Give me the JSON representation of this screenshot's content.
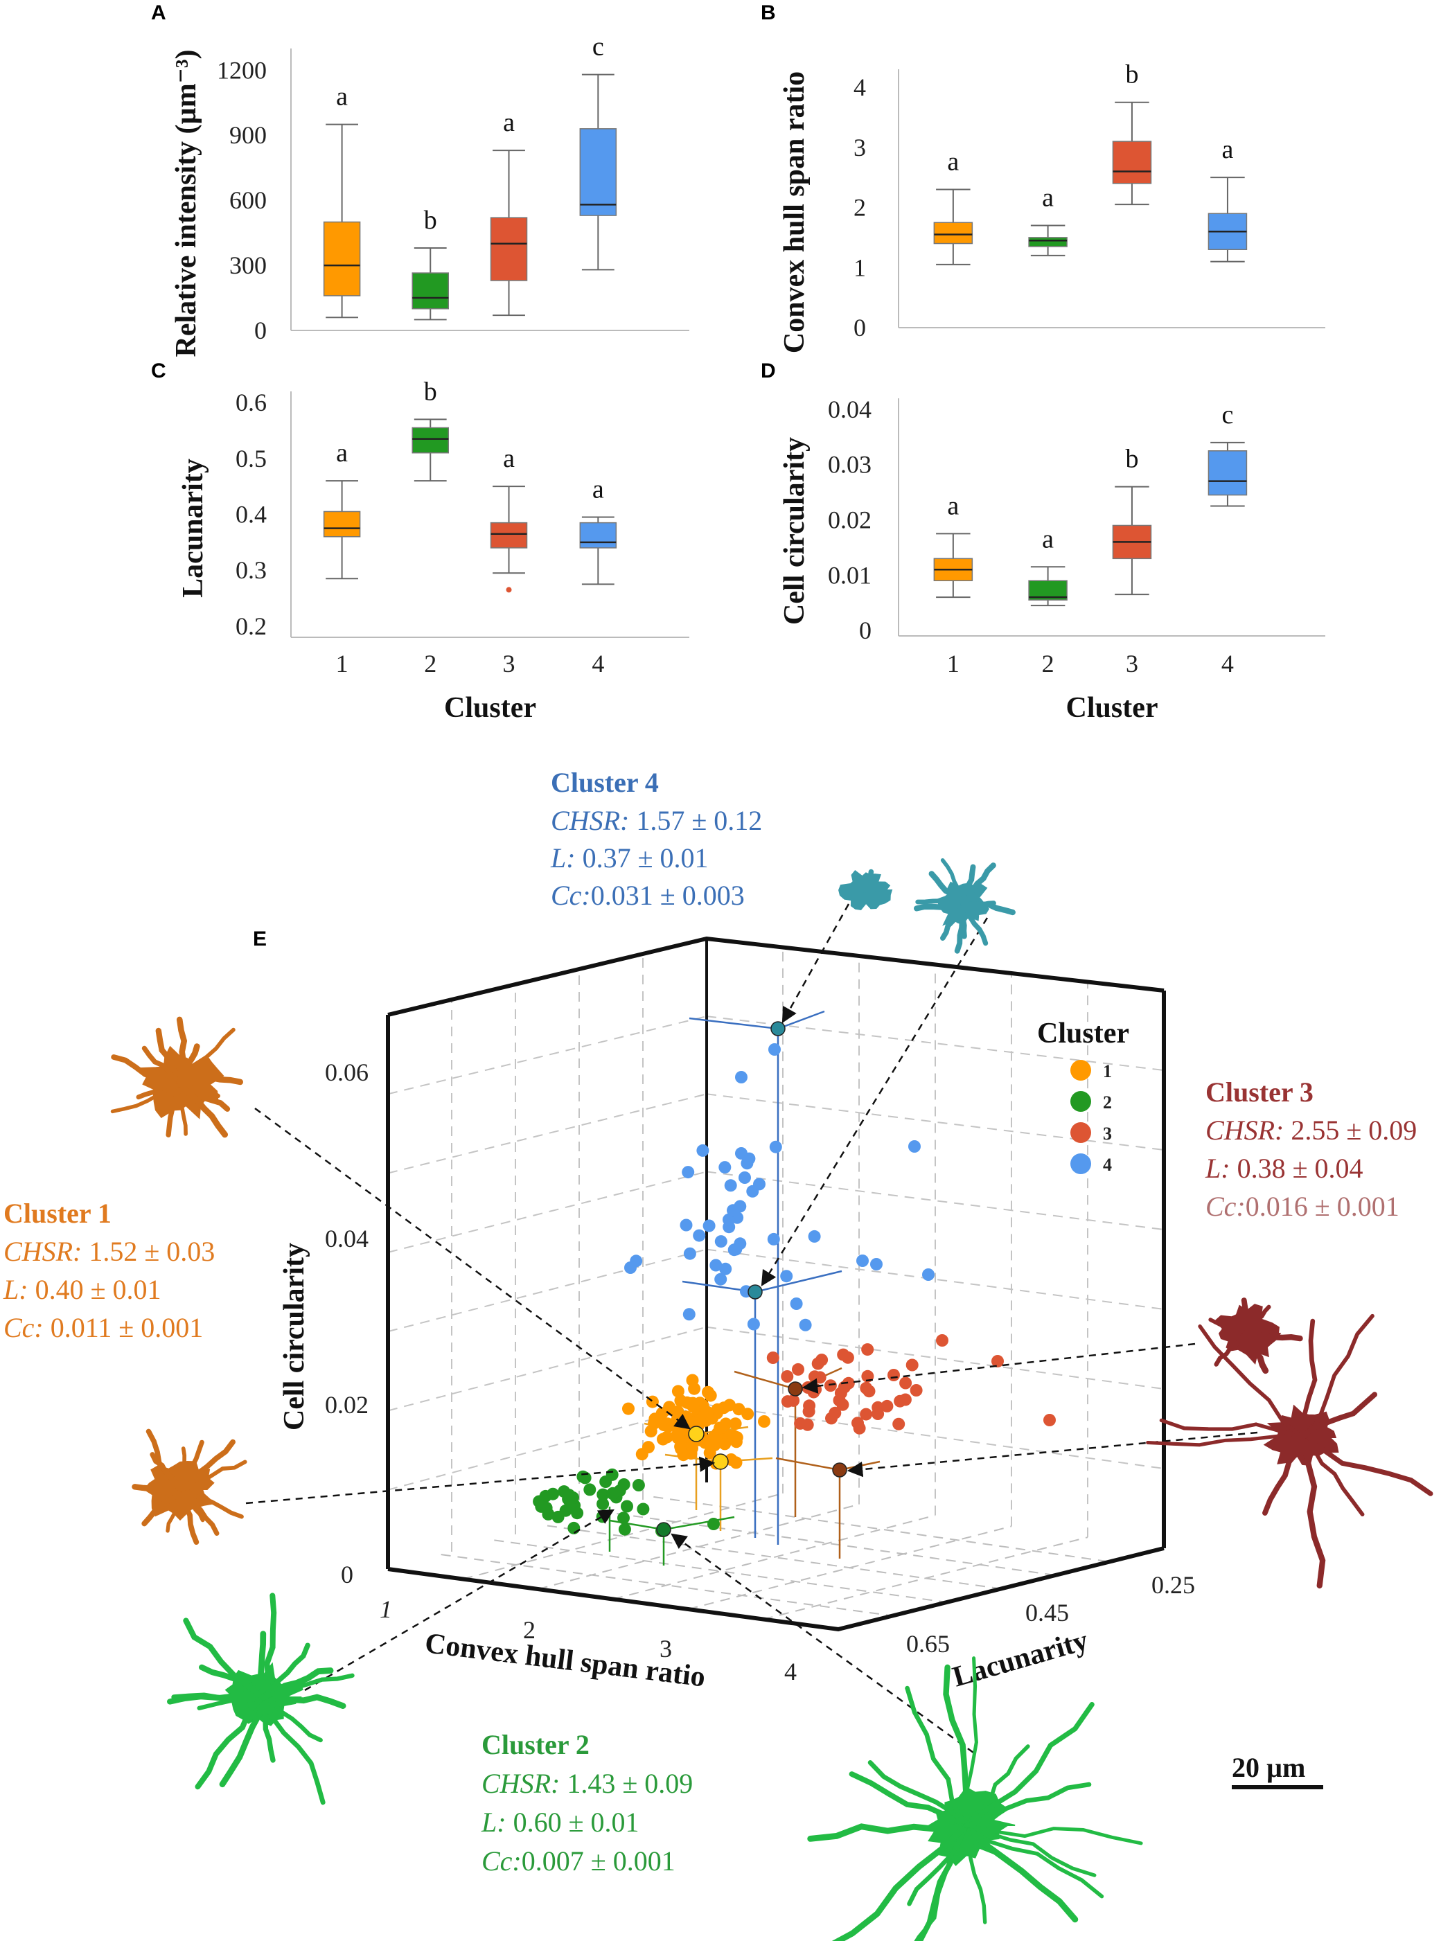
{
  "chart_data": [
    {
      "panel": "A",
      "type": "box",
      "ylabel": "Relative intensity (µm⁻³)",
      "xlabel": "",
      "ylim": [
        0,
        1300
      ],
      "yticks": [
        "0",
        "300",
        "600",
        "900",
        "1200"
      ],
      "ytick_values": [
        0,
        300,
        600,
        900,
        1200
      ],
      "categories": [
        "1",
        "2",
        "3",
        "4"
      ],
      "colors": [
        "#ff9900",
        "#229922",
        "#dd5533",
        "#5599ee"
      ],
      "boxes": [
        {
          "cluster": "1",
          "whisker_low": 60,
          "q1": 160,
          "median": 300,
          "q3": 500,
          "whisker_high": 950,
          "letter": "a"
        },
        {
          "cluster": "2",
          "whisker_low": 50,
          "q1": 100,
          "median": 150,
          "q3": 265,
          "whisker_high": 380,
          "letter": "b"
        },
        {
          "cluster": "3",
          "whisker_low": 70,
          "q1": 230,
          "median": 400,
          "q3": 520,
          "whisker_high": 830,
          "letter": "a"
        },
        {
          "cluster": "4",
          "whisker_low": 280,
          "q1": 530,
          "median": 580,
          "q3": 930,
          "whisker_high": 1180,
          "letter": "c"
        }
      ]
    },
    {
      "panel": "B",
      "type": "box",
      "ylabel": "Convex hull span ratio",
      "xlabel": "",
      "ylim": [
        0,
        4.3
      ],
      "yticks": [
        "0",
        "1",
        "2",
        "3",
        "4"
      ],
      "ytick_values": [
        0,
        1,
        2,
        3,
        4
      ],
      "categories": [
        "1",
        "2",
        "3",
        "4"
      ],
      "colors": [
        "#ff9900",
        "#229922",
        "#dd5533",
        "#5599ee"
      ],
      "boxes": [
        {
          "cluster": "1",
          "whisker_low": 1.05,
          "q1": 1.4,
          "median": 1.55,
          "q3": 1.75,
          "whisker_high": 2.3,
          "letter": "a"
        },
        {
          "cluster": "2",
          "whisker_low": 1.2,
          "q1": 1.35,
          "median": 1.45,
          "q3": 1.5,
          "whisker_high": 1.7,
          "letter": "a"
        },
        {
          "cluster": "3",
          "whisker_low": 2.05,
          "q1": 2.4,
          "median": 2.6,
          "q3": 3.1,
          "whisker_high": 3.75,
          "letter": "b"
        },
        {
          "cluster": "4",
          "whisker_low": 1.1,
          "q1": 1.3,
          "median": 1.6,
          "q3": 1.9,
          "whisker_high": 2.5,
          "letter": "a"
        }
      ]
    },
    {
      "panel": "C",
      "type": "box",
      "ylabel": "Lacunarity",
      "xlabel": "Cluster",
      "ylim": [
        0.18,
        0.62
      ],
      "yticks": [
        "0.2",
        "0.3",
        "0.4",
        "0.5",
        "0.6"
      ],
      "ytick_values": [
        0.2,
        0.3,
        0.4,
        0.5,
        0.6
      ],
      "categories": [
        "1",
        "2",
        "3",
        "4"
      ],
      "colors": [
        "#ff9900",
        "#229922",
        "#dd5533",
        "#5599ee"
      ],
      "boxes": [
        {
          "cluster": "1",
          "whisker_low": 0.285,
          "q1": 0.36,
          "median": 0.375,
          "q3": 0.405,
          "whisker_high": 0.46,
          "letter": "a"
        },
        {
          "cluster": "2",
          "whisker_low": 0.46,
          "q1": 0.51,
          "median": 0.535,
          "q3": 0.555,
          "whisker_high": 0.57,
          "letter": "b"
        },
        {
          "cluster": "3",
          "whisker_low": 0.295,
          "q1": 0.34,
          "median": 0.365,
          "q3": 0.385,
          "whisker_high": 0.45,
          "letter": "a",
          "outliers": [
            0.265
          ]
        },
        {
          "cluster": "4",
          "whisker_low": 0.275,
          "q1": 0.34,
          "median": 0.35,
          "q3": 0.385,
          "whisker_high": 0.395,
          "letter": "a"
        }
      ]
    },
    {
      "panel": "D",
      "type": "box",
      "ylabel": "Cell circularity",
      "xlabel": "Cluster",
      "ylim": [
        -0.001,
        0.042
      ],
      "yticks": [
        "0",
        "0.01",
        "0.02",
        "0.03",
        "0.04"
      ],
      "ytick_values": [
        0,
        0.01,
        0.02,
        0.03,
        0.04
      ],
      "categories": [
        "1",
        "2",
        "3",
        "4"
      ],
      "colors": [
        "#ff9900",
        "#229922",
        "#dd5533",
        "#5599ee"
      ],
      "boxes": [
        {
          "cluster": "1",
          "whisker_low": 0.006,
          "q1": 0.009,
          "median": 0.011,
          "q3": 0.013,
          "whisker_high": 0.0175,
          "letter": "a"
        },
        {
          "cluster": "2",
          "whisker_low": 0.0045,
          "q1": 0.0055,
          "median": 0.006,
          "q3": 0.009,
          "whisker_high": 0.0115,
          "letter": "a"
        },
        {
          "cluster": "3",
          "whisker_low": 0.0065,
          "q1": 0.013,
          "median": 0.016,
          "q3": 0.019,
          "whisker_high": 0.026,
          "letter": "b"
        },
        {
          "cluster": "4",
          "whisker_low": 0.0225,
          "q1": 0.0245,
          "median": 0.027,
          "q3": 0.0325,
          "whisker_high": 0.034,
          "letter": "c"
        }
      ]
    },
    {
      "panel": "E",
      "type": "scatter3d",
      "axes": {
        "x_label": "Convex hull span ratio",
        "x_ticks": [
          "1",
          "2",
          "3",
          "4"
        ],
        "y_label": "Lacunarity",
        "y_ticks": [
          "0.25",
          "0.45",
          "0.65"
        ],
        "z_label": "Cell circularity",
        "z_ticks": [
          "0",
          "0.02",
          "0.04",
          "0.06"
        ]
      },
      "legend": {
        "title": "Cluster",
        "entries": [
          {
            "label": "1",
            "color": "#ff9900"
          },
          {
            "label": "2",
            "color": "#229922"
          },
          {
            "label": "3",
            "color": "#dd5533"
          },
          {
            "label": "4",
            "color": "#5599ee"
          }
        ]
      },
      "annotations": [
        {
          "title": "Cluster 4",
          "color": "#3b6fb6",
          "chsr_label": "CHSR:",
          "chsr": "1.57 ± 0.12",
          "l_label": "L:",
          "l": "0.37 ± 0.01",
          "cc_label": "Cc:",
          "cc": "0.031 ± 0.003"
        },
        {
          "title": "Cluster 3",
          "color": "#993333",
          "chsr_label": "CHSR:",
          "chsr": "2.55 ± 0.09",
          "l_label": "L:",
          "l": "0.38 ± 0.04",
          "cc_label": "Cc:",
          "cc": "0.016 ± 0.001"
        },
        {
          "title": "Cluster 1",
          "color": "#e07a1f",
          "chsr_label": "CHSR:",
          "chsr": "1.52 ± 0.03",
          "l_label": "L:",
          "l": "0.40 ± 0.01",
          "cc_label": "Cc:",
          "cc": "0.011 ± 0.001"
        },
        {
          "title": "Cluster 2",
          "color": "#2a9a3a",
          "chsr_label": "CHSR:",
          "chsr": "1.43 ± 0.09",
          "l_label": "L:",
          "l": "0.60 ± 0.01",
          "cc_label": "Cc:",
          "cc": "0.007 ± 0.001"
        }
      ],
      "scale_bar": "20 µm"
    }
  ],
  "panel_letters": {
    "a": "A",
    "b": "B",
    "c": "C",
    "d": "D",
    "e": "E"
  }
}
